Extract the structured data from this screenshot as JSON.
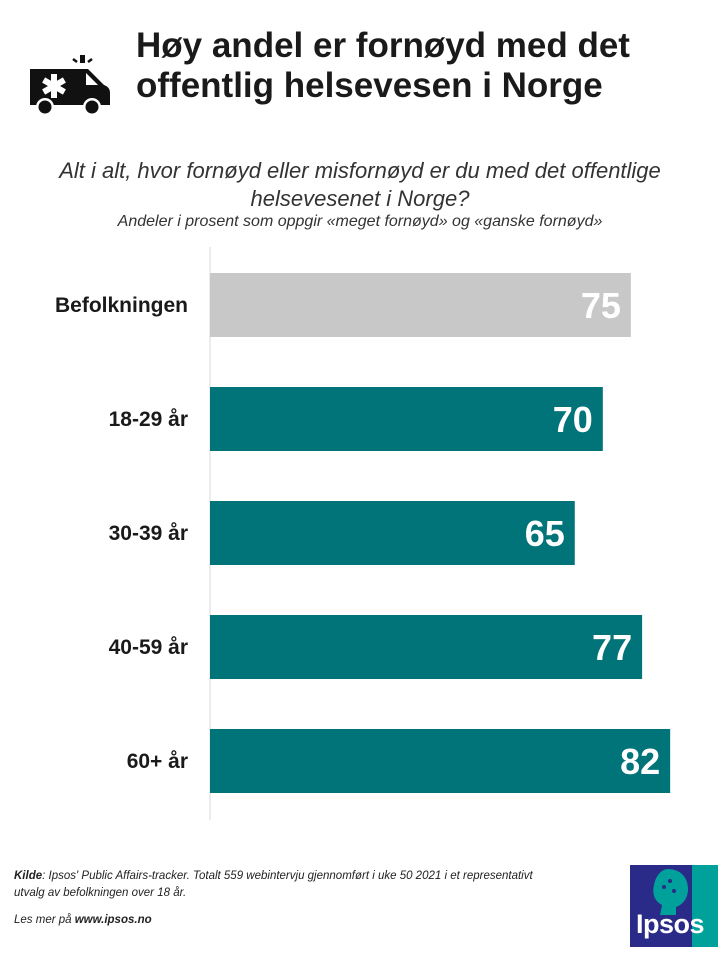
{
  "title_lines": [
    "Høy andel er fornøyd med det",
    "offentlig helsevesen i Norge"
  ],
  "question_lines": [
    "Alt i alt, hvor fornøyd eller misfornøyd er du med det offentlige",
    "helsevesenet i Norge?"
  ],
  "subtitle": "Andeler i prosent som oppgir «meget fornøyd» og «ganske fornøyd»",
  "icons": {
    "header": "ambulance-icon"
  },
  "colors": {
    "population": "#c8c8c8",
    "age": "#007478",
    "value_text": "#ffffff",
    "axis": "#d9d9d9"
  },
  "chart_data": {
    "type": "bar",
    "orientation": "horizontal",
    "title": "Alt i alt, hvor fornøyd eller misfornøyd er du med det offentlige helsevesenet i Norge?",
    "subtitle": "Andeler i prosent som oppgir «meget fornøyd» og «ganske fornøyd»",
    "categories": [
      "Befolkningen",
      "18-29 år",
      "30-39 år",
      "40-59 år",
      "60+ år"
    ],
    "values": [
      75,
      70,
      65,
      77,
      82
    ],
    "unit": "percent",
    "xlim": [
      0,
      85
    ],
    "gridlines": false,
    "data_labels": true,
    "highlight": {
      "Befolkningen": "population"
    }
  },
  "footer": {
    "source_label": "Kilde",
    "source_text_1": ": Ipsos' Public Affairs-tracker. Totalt 559 webintervju  gjennomført  i uke 50 2021 i et representativt",
    "source_text_2": "utvalg  av  befolkningen over  18 år.",
    "more_prefix": "Les mer på ",
    "more_link": "www.ipsos.no"
  },
  "logo": {
    "text": "Ipsos"
  }
}
